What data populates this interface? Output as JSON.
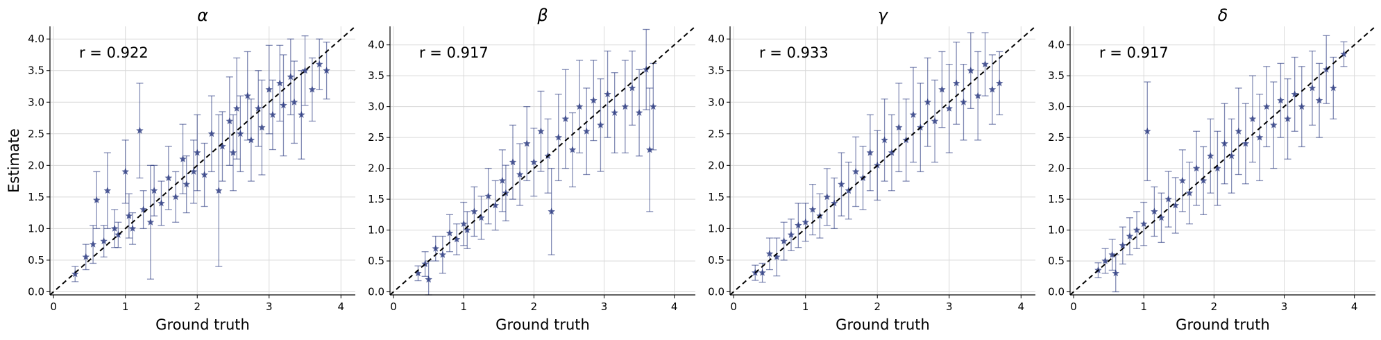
{
  "chart_data": [
    {
      "type": "scatter",
      "title": "α",
      "annotation": "r = 0.922",
      "xlabel": "Ground truth",
      "ylabel": "Estimate",
      "xlim": [
        -0.05,
        4.2
      ],
      "ylim": [
        -0.05,
        4.2
      ],
      "xticks": [
        "0",
        "1",
        "2",
        "3",
        "4"
      ],
      "yticks": [
        "0.0",
        "0.5",
        "1.0",
        "1.5",
        "2.0",
        "2.5",
        "3.0",
        "3.5",
        "4.0"
      ],
      "grid": true,
      "reference_line": "y = x",
      "color": "#1f2f7a",
      "points": [
        [
          0.3,
          0.28,
          0.12
        ],
        [
          0.45,
          0.55,
          0.2
        ],
        [
          0.55,
          0.75,
          0.3
        ],
        [
          0.6,
          1.45,
          0.45
        ],
        [
          0.7,
          0.8,
          0.25
        ],
        [
          0.75,
          1.6,
          0.6
        ],
        [
          0.85,
          1.0,
          0.3
        ],
        [
          0.9,
          0.9,
          0.2
        ],
        [
          1.0,
          1.9,
          0.5
        ],
        [
          1.05,
          1.2,
          0.35
        ],
        [
          1.1,
          1.0,
          0.25
        ],
        [
          1.2,
          2.55,
          0.75
        ],
        [
          1.25,
          1.3,
          0.3
        ],
        [
          1.35,
          1.1,
          0.9
        ],
        [
          1.4,
          1.6,
          0.4
        ],
        [
          1.5,
          1.4,
          0.35
        ],
        [
          1.6,
          1.8,
          0.5
        ],
        [
          1.7,
          1.5,
          0.4
        ],
        [
          1.8,
          2.1,
          0.55
        ],
        [
          1.85,
          1.7,
          0.45
        ],
        [
          1.95,
          1.9,
          0.5
        ],
        [
          2.0,
          2.2,
          0.6
        ],
        [
          2.1,
          1.85,
          0.5
        ],
        [
          2.2,
          2.5,
          0.6
        ],
        [
          2.3,
          1.6,
          1.2
        ],
        [
          2.35,
          2.3,
          0.55
        ],
        [
          2.45,
          2.7,
          0.7
        ],
        [
          2.5,
          2.2,
          0.6
        ],
        [
          2.55,
          2.9,
          0.8
        ],
        [
          2.6,
          2.5,
          0.6
        ],
        [
          2.7,
          3.1,
          0.7
        ],
        [
          2.75,
          2.4,
          0.65
        ],
        [
          2.85,
          2.9,
          0.6
        ],
        [
          2.9,
          2.6,
          0.75
        ],
        [
          3.0,
          3.2,
          0.7
        ],
        [
          3.05,
          2.8,
          0.55
        ],
        [
          3.15,
          3.3,
          0.6
        ],
        [
          3.2,
          2.95,
          0.8
        ],
        [
          3.3,
          3.4,
          0.6
        ],
        [
          3.35,
          3.0,
          0.65
        ],
        [
          3.45,
          2.8,
          0.7
        ],
        [
          3.5,
          3.5,
          0.55
        ],
        [
          3.6,
          3.2,
          0.5
        ],
        [
          3.7,
          3.6,
          0.4
        ],
        [
          3.8,
          3.5,
          0.45
        ]
      ]
    },
    {
      "type": "scatter",
      "title": "β",
      "annotation": "r = 0.917",
      "xlabel": "Ground truth",
      "xlim": [
        -0.05,
        4.3
      ],
      "ylim": [
        -0.05,
        4.3
      ],
      "xticks": [
        "0",
        "1",
        "2",
        "3",
        "4"
      ],
      "yticks": [
        "0.0",
        "0.5",
        "1.0",
        "1.5",
        "2.0",
        "2.5",
        "3.0",
        "3.5",
        "4.0"
      ],
      "grid": true,
      "reference_line": "y = x",
      "color": "#1f2f7a",
      "points": [
        [
          0.35,
          0.3,
          0.12
        ],
        [
          0.45,
          0.45,
          0.2
        ],
        [
          0.5,
          0.2,
          0.3
        ],
        [
          0.6,
          0.7,
          0.2
        ],
        [
          0.7,
          0.6,
          0.3
        ],
        [
          0.8,
          0.95,
          0.3
        ],
        [
          0.9,
          0.85,
          0.25
        ],
        [
          1.0,
          1.1,
          0.35
        ],
        [
          1.05,
          1.0,
          0.3
        ],
        [
          1.15,
          1.3,
          0.4
        ],
        [
          1.25,
          1.2,
          0.35
        ],
        [
          1.35,
          1.55,
          0.45
        ],
        [
          1.45,
          1.4,
          0.4
        ],
        [
          1.55,
          1.8,
          0.5
        ],
        [
          1.6,
          1.6,
          0.45
        ],
        [
          1.7,
          2.1,
          0.6
        ],
        [
          1.8,
          1.9,
          0.5
        ],
        [
          1.9,
          2.4,
          0.6
        ],
        [
          2.0,
          2.1,
          0.55
        ],
        [
          2.1,
          2.6,
          0.65
        ],
        [
          2.2,
          2.2,
          0.6
        ],
        [
          2.25,
          1.3,
          0.7
        ],
        [
          2.35,
          2.5,
          0.7
        ],
        [
          2.45,
          2.8,
          0.8
        ],
        [
          2.55,
          2.3,
          0.6
        ],
        [
          2.65,
          3.0,
          0.75
        ],
        [
          2.75,
          2.6,
          0.7
        ],
        [
          2.85,
          3.1,
          0.65
        ],
        [
          2.95,
          2.7,
          0.75
        ],
        [
          3.05,
          3.2,
          0.7
        ],
        [
          3.15,
          2.9,
          0.65
        ],
        [
          3.3,
          3.0,
          0.75
        ],
        [
          3.4,
          3.3,
          0.6
        ],
        [
          3.5,
          2.9,
          0.7
        ],
        [
          3.6,
          3.6,
          0.65
        ],
        [
          3.65,
          2.3,
          1.0
        ],
        [
          3.7,
          3.0,
          0.7
        ]
      ]
    },
    {
      "type": "scatter",
      "title": "γ",
      "annotation": "r = 0.933",
      "xlabel": "Ground truth",
      "xlim": [
        -0.05,
        4.2
      ],
      "ylim": [
        -0.05,
        4.2
      ],
      "xticks": [
        "0",
        "1",
        "2",
        "3",
        "4"
      ],
      "yticks": [
        "0.0",
        "0.5",
        "1.0",
        "1.5",
        "2.0",
        "2.5",
        "3.0",
        "3.5",
        "4.0"
      ],
      "grid": true,
      "reference_line": "y = x",
      "color": "#1f2f7a",
      "points": [
        [
          0.3,
          0.3,
          0.12
        ],
        [
          0.4,
          0.3,
          0.15
        ],
        [
          0.5,
          0.6,
          0.25
        ],
        [
          0.6,
          0.55,
          0.3
        ],
        [
          0.7,
          0.8,
          0.3
        ],
        [
          0.8,
          0.9,
          0.25
        ],
        [
          0.9,
          1.05,
          0.35
        ],
        [
          1.0,
          1.1,
          0.3
        ],
        [
          1.1,
          1.3,
          0.4
        ],
        [
          1.2,
          1.2,
          0.35
        ],
        [
          1.3,
          1.5,
          0.45
        ],
        [
          1.4,
          1.4,
          0.4
        ],
        [
          1.5,
          1.7,
          0.5
        ],
        [
          1.6,
          1.6,
          0.45
        ],
        [
          1.7,
          1.9,
          0.55
        ],
        [
          1.8,
          1.8,
          0.5
        ],
        [
          1.9,
          2.2,
          0.6
        ],
        [
          2.0,
          2.0,
          0.55
        ],
        [
          2.1,
          2.4,
          0.65
        ],
        [
          2.2,
          2.2,
          0.6
        ],
        [
          2.3,
          2.6,
          0.7
        ],
        [
          2.4,
          2.4,
          0.65
        ],
        [
          2.5,
          2.8,
          0.75
        ],
        [
          2.6,
          2.6,
          0.7
        ],
        [
          2.7,
          3.0,
          0.7
        ],
        [
          2.8,
          2.7,
          0.65
        ],
        [
          2.9,
          3.2,
          0.6
        ],
        [
          3.0,
          2.9,
          0.7
        ],
        [
          3.1,
          3.3,
          0.65
        ],
        [
          3.2,
          3.0,
          0.6
        ],
        [
          3.3,
          3.5,
          0.6
        ],
        [
          3.4,
          3.1,
          0.7
        ],
        [
          3.5,
          3.6,
          0.5
        ],
        [
          3.6,
          3.2,
          0.55
        ],
        [
          3.7,
          3.3,
          0.5
        ]
      ]
    },
    {
      "type": "scatter",
      "title": "δ",
      "annotation": "r = 0.917",
      "xlabel": "Ground truth",
      "xlim": [
        -0.05,
        4.3
      ],
      "ylim": [
        -0.05,
        4.3
      ],
      "xticks": [
        "0",
        "1",
        "2",
        "3",
        "4"
      ],
      "yticks": [
        "0.0",
        "0.5",
        "1.0",
        "1.5",
        "2.0",
        "2.5",
        "3.0",
        "3.5",
        "4.0"
      ],
      "grid": true,
      "reference_line": "y = x",
      "color": "#1f2f7a",
      "points": [
        [
          0.35,
          0.35,
          0.12
        ],
        [
          0.45,
          0.5,
          0.2
        ],
        [
          0.55,
          0.6,
          0.25
        ],
        [
          0.6,
          0.3,
          0.3
        ],
        [
          0.7,
          0.75,
          0.3
        ],
        [
          0.8,
          0.9,
          0.3
        ],
        [
          0.9,
          1.0,
          0.3
        ],
        [
          1.0,
          1.1,
          0.35
        ],
        [
          1.05,
          2.6,
          0.8
        ],
        [
          1.15,
          1.3,
          0.4
        ],
        [
          1.25,
          1.2,
          0.4
        ],
        [
          1.35,
          1.5,
          0.45
        ],
        [
          1.45,
          1.4,
          0.45
        ],
        [
          1.55,
          1.8,
          0.5
        ],
        [
          1.65,
          1.6,
          0.5
        ],
        [
          1.75,
          2.0,
          0.6
        ],
        [
          1.85,
          1.8,
          0.55
        ],
        [
          1.95,
          2.2,
          0.6
        ],
        [
          2.05,
          2.0,
          0.6
        ],
        [
          2.15,
          2.4,
          0.65
        ],
        [
          2.25,
          2.2,
          0.6
        ],
        [
          2.35,
          2.6,
          0.7
        ],
        [
          2.45,
          2.4,
          0.65
        ],
        [
          2.55,
          2.8,
          0.7
        ],
        [
          2.65,
          2.5,
          0.7
        ],
        [
          2.75,
          3.0,
          0.65
        ],
        [
          2.85,
          2.7,
          0.7
        ],
        [
          2.95,
          3.1,
          0.6
        ],
        [
          3.05,
          2.8,
          0.65
        ],
        [
          3.15,
          3.2,
          0.6
        ],
        [
          3.25,
          3.0,
          0.65
        ],
        [
          3.4,
          3.3,
          0.6
        ],
        [
          3.5,
          3.1,
          0.6
        ],
        [
          3.6,
          3.6,
          0.55
        ],
        [
          3.7,
          3.3,
          0.5
        ],
        [
          3.85,
          3.85,
          0.2
        ]
      ]
    }
  ]
}
